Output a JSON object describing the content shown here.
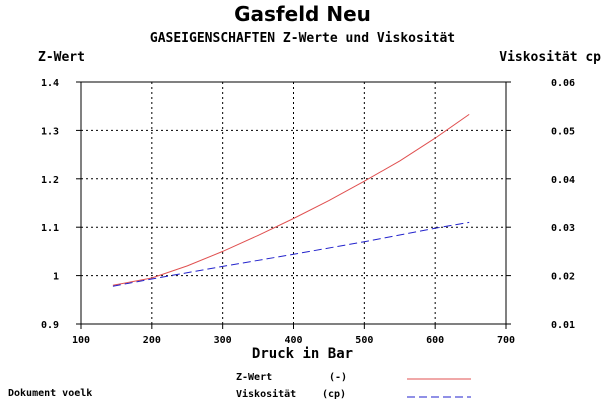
{
  "chart_data": {
    "type": "line",
    "title": "Gasfeld Neu",
    "subtitle": "GASEIGENSCHAFTEN Z-Werte und Viskosität",
    "xlabel": "Druck in Bar",
    "ylabel_left": "Z-Wert",
    "ylabel_right": "Viskosität cp",
    "xlim": [
      100,
      700
    ],
    "ylim_left": [
      0.9,
      1.4
    ],
    "ylim_right": [
      0.01,
      0.06
    ],
    "x_ticks": [
      "100",
      "200",
      "300",
      "400",
      "500",
      "600",
      "700"
    ],
    "y_ticks_left": [
      "0.9",
      "1",
      "1.1",
      "1.2",
      "1.3",
      "1.4"
    ],
    "y_ticks_right": [
      "0.01",
      "0.02",
      "0.03",
      "0.04",
      "0.05",
      "0.06"
    ],
    "grid": true,
    "legend_position": "bottom",
    "series": [
      {
        "name": "Z-Wert",
        "unit": "(-)",
        "axis": "left",
        "color": "#e05050",
        "dash": "solid",
        "x": [
          145,
          200,
          250,
          300,
          350,
          400,
          450,
          500,
          550,
          600,
          648
        ],
        "y": [
          0.98,
          0.995,
          1.02,
          1.05,
          1.083,
          1.118,
          1.155,
          1.195,
          1.237,
          1.284,
          1.333
        ]
      },
      {
        "name": "Viskosität",
        "unit": "(cp)",
        "axis": "right",
        "color": "#2222cc",
        "dash": "dashed",
        "x": [
          145,
          200,
          300,
          400,
          500,
          600,
          648
        ],
        "y": [
          0.0178,
          0.0193,
          0.0219,
          0.0244,
          0.027,
          0.0298,
          0.031
        ]
      }
    ]
  },
  "footer": "Dokument voelk"
}
